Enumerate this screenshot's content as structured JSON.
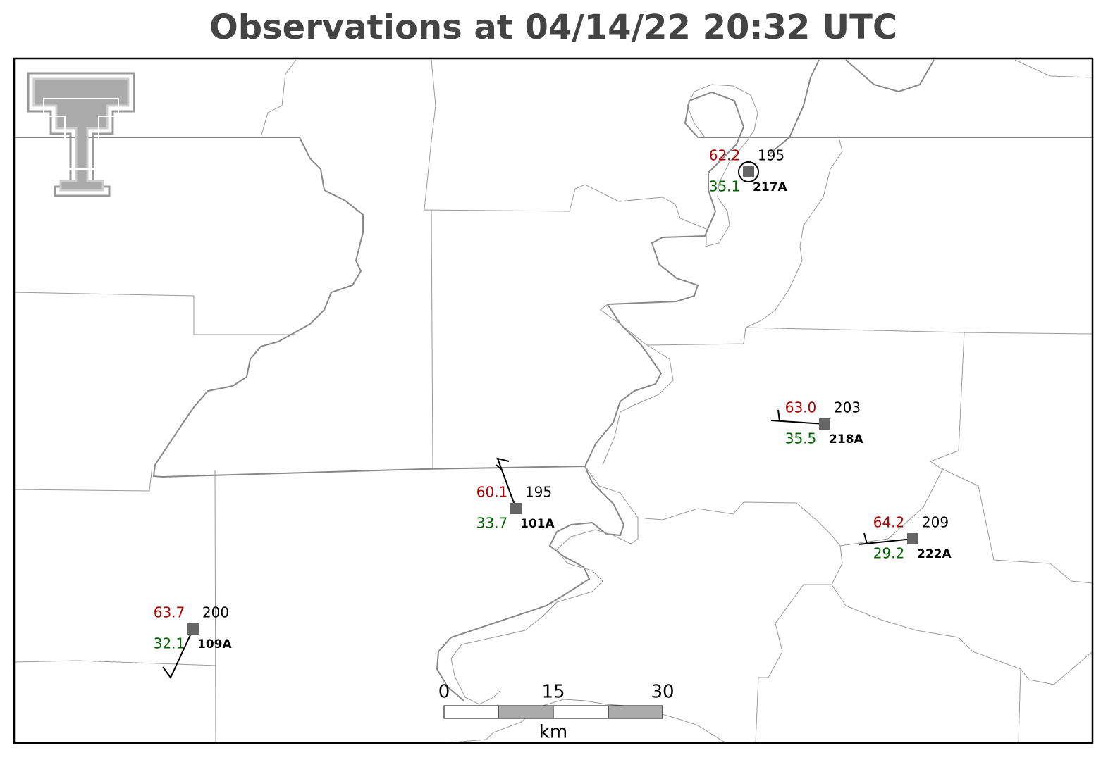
{
  "title": "Observations at 04/14/22 20:32 UTC",
  "stations": [
    {
      "id": "217A",
      "temperature": "62.2",
      "dewpoint": "35.1",
      "pressure": "195"
    },
    {
      "id": "218A",
      "temperature": "63.0",
      "dewpoint": "35.5",
      "pressure": "203"
    },
    {
      "id": "101A",
      "temperature": "60.1",
      "dewpoint": "33.7",
      "pressure": "195"
    },
    {
      "id": "222A",
      "temperature": "64.2",
      "dewpoint": "29.2",
      "pressure": "209"
    },
    {
      "id": "109A",
      "temperature": "63.7",
      "dewpoint": "32.1",
      "pressure": "200"
    }
  ],
  "scale_bar": {
    "ticks": [
      "0",
      "15",
      "30"
    ],
    "unit": "km"
  }
}
